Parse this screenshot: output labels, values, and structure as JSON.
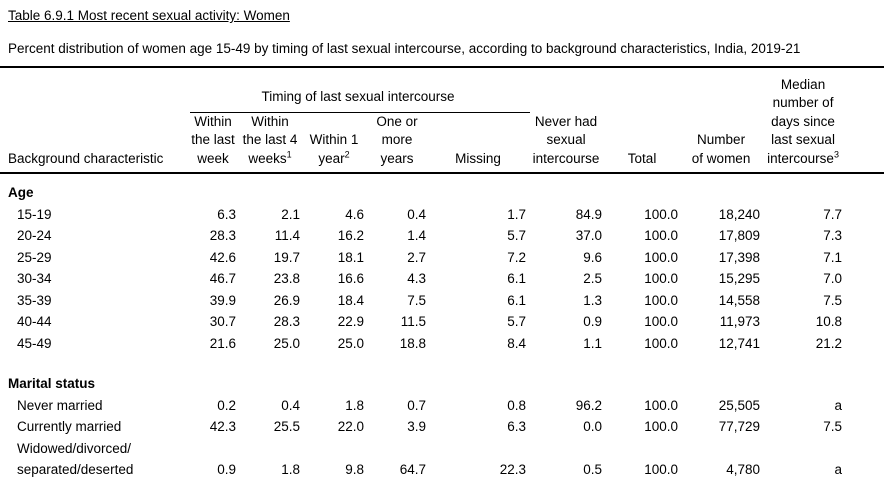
{
  "page": {
    "title": "Table 6.9.1 Most recent sexual activity: Women",
    "subtitle": "Percent distribution of women age 15-49 by timing of last sexual intercourse, according to background characteristics, India, 2019-21"
  },
  "table": {
    "group_header": "Timing of last sexual intercourse",
    "columns": [
      {
        "label": "Background characteristic"
      },
      {
        "label": "Within\nthe last\nweek"
      },
      {
        "label": "Within\nthe last 4\nweeks",
        "sup": "1"
      },
      {
        "label": "Within 1\nyear",
        "sup": "2"
      },
      {
        "label": "One or\nmore\nyears"
      },
      {
        "label": "Missing"
      },
      {
        "label": "Never had\nsexual\nintercourse"
      },
      {
        "label": "Total"
      },
      {
        "label": "Number\nof women"
      },
      {
        "label": "Median\nnumber of\ndays since\nlast sexual\nintercourse",
        "sup": "3"
      }
    ],
    "sections": [
      {
        "header": "Age",
        "rows": [
          {
            "label": "15-19",
            "values": [
              "6.3",
              "2.1",
              "4.6",
              "0.4",
              "1.7",
              "84.9",
              "100.0",
              "18,240",
              "7.7"
            ]
          },
          {
            "label": "20-24",
            "values": [
              "28.3",
              "11.4",
              "16.2",
              "1.4",
              "5.7",
              "37.0",
              "100.0",
              "17,809",
              "7.3"
            ]
          },
          {
            "label": "25-29",
            "values": [
              "42.6",
              "19.7",
              "18.1",
              "2.7",
              "7.2",
              "9.6",
              "100.0",
              "17,398",
              "7.1"
            ]
          },
          {
            "label": "30-34",
            "values": [
              "46.7",
              "23.8",
              "16.6",
              "4.3",
              "6.1",
              "2.5",
              "100.0",
              "15,295",
              "7.0"
            ]
          },
          {
            "label": "35-39",
            "values": [
              "39.9",
              "26.9",
              "18.4",
              "7.5",
              "6.1",
              "1.3",
              "100.0",
              "14,558",
              "7.5"
            ]
          },
          {
            "label": "40-44",
            "values": [
              "30.7",
              "28.3",
              "22.9",
              "11.5",
              "5.7",
              "0.9",
              "100.0",
              "11,973",
              "10.8"
            ]
          },
          {
            "label": "45-49",
            "values": [
              "21.6",
              "25.0",
              "25.0",
              "18.8",
              "8.4",
              "1.1",
              "100.0",
              "12,741",
              "21.2"
            ]
          }
        ]
      },
      {
        "header": "Marital status",
        "rows": [
          {
            "label": "Never married",
            "values": [
              "0.2",
              "0.4",
              "1.8",
              "0.7",
              "0.8",
              "96.2",
              "100.0",
              "25,505",
              "a"
            ]
          },
          {
            "label": "Currently married",
            "values": [
              "42.3",
              "25.5",
              "22.0",
              "3.9",
              "6.3",
              "0.0",
              "100.0",
              "77,729",
              "7.5"
            ]
          },
          {
            "label": "Widowed/divorced/\nseparated/deserted",
            "values": [
              "0.9",
              "1.8",
              "9.8",
              "64.7",
              "22.3",
              "0.5",
              "100.0",
              "4,780",
              "a"
            ]
          }
        ]
      }
    ]
  }
}
